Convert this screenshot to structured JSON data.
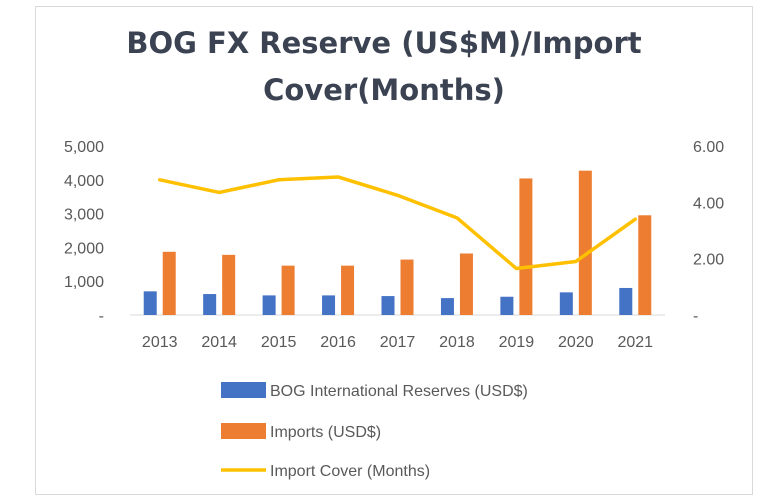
{
  "chart_data": {
    "type": "bar",
    "title_lines": [
      "BOG FX Reserve (US$M)/Import",
      "Cover(Months)"
    ],
    "categories": [
      "2013",
      "2014",
      "2015",
      "2016",
      "2017",
      "2018",
      "2019",
      "2020",
      "2021"
    ],
    "series": [
      {
        "name": "BOG International Reserves (USD$)",
        "type": "bar",
        "axis": "left",
        "color": "#4472c4",
        "values": [
          700,
          620,
          580,
          580,
          560,
          500,
          540,
          670,
          800
        ]
      },
      {
        "name": "Imports (USD$)",
        "type": "bar",
        "axis": "left",
        "color": "#ed7d31",
        "values": [
          1870,
          1780,
          1460,
          1460,
          1640,
          1820,
          4040,
          4270,
          2950
        ]
      },
      {
        "name": "Import Cover (Months)",
        "type": "line",
        "axis": "right",
        "color": "#ffc000",
        "values": [
          4.8,
          4.35,
          4.8,
          4.9,
          4.25,
          3.45,
          1.65,
          1.9,
          3.4
        ]
      }
    ],
    "y_left": {
      "range": [
        0,
        5000
      ],
      "ticks": [
        0,
        1000,
        2000,
        3000,
        4000,
        5000
      ],
      "tick_labels": [
        "-",
        "1,000",
        "2,000",
        "3,000",
        "4,000",
        "5,000"
      ]
    },
    "y_right": {
      "range": [
        0,
        6
      ],
      "ticks": [
        0,
        2,
        4,
        6
      ],
      "tick_labels": [
        "-",
        "2.00",
        "4.00",
        "6.00"
      ]
    },
    "grid": false,
    "legend_position": "bottom"
  }
}
